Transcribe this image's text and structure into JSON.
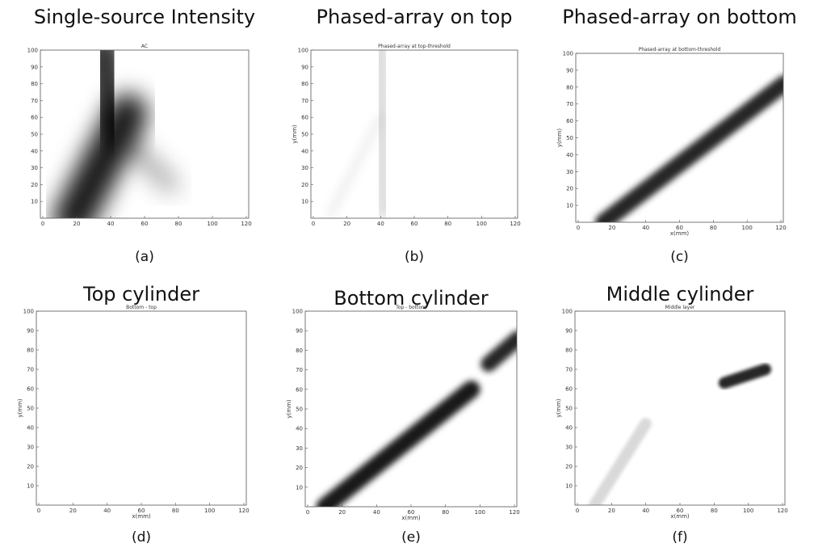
{
  "axes": {
    "x_ticks": [
      0,
      20,
      40,
      60,
      80,
      100,
      120
    ],
    "y_ticks": [
      10,
      20,
      30,
      40,
      50,
      60,
      70,
      80,
      90,
      100
    ]
  },
  "panels": [
    {
      "heading": "Single-source Intensity",
      "plot_title": "AC",
      "caption": "(a)"
    },
    {
      "heading": "Phased-array on top",
      "plot_title": "Phased-array at top-threshold",
      "y_label": "y(mm)",
      "caption": "(b)"
    },
    {
      "heading": "Phased-array on bottom",
      "plot_title": "Phased-array at bottom-threshold",
      "x_label": "x(mm)",
      "y_label": "y(mm)",
      "caption": "(c)"
    },
    {
      "heading": "Top cylinder",
      "plot_title": "Bottom - top",
      "x_label": "x(mm)",
      "y_label": "y(mm)",
      "caption": "(d)"
    },
    {
      "heading": "Bottom cylinder",
      "plot_title": "Top - bottom",
      "x_label": "x(mm)",
      "y_label": "y(mm)",
      "caption": "(e)"
    },
    {
      "heading": "Middle cylinder",
      "plot_title": "Middle layer",
      "x_label": "x(mm)",
      "y_label": "y(mm)",
      "caption": "(f)"
    }
  ]
}
